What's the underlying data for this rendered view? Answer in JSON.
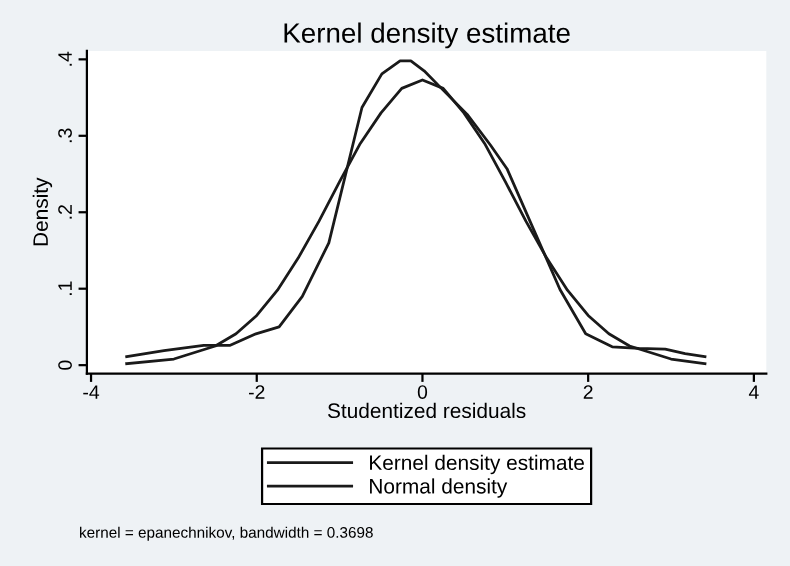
{
  "chart_data": {
    "type": "line",
    "title": "Kernel density estimate",
    "xlabel": "Studentized residuals",
    "ylabel": "Density",
    "series": [
      {
        "name": "Kernel density estimate",
        "color": "#1a1a1a",
        "x": [
          -3.57,
          -3.12,
          -2.64,
          -2.32,
          -2.01,
          -1.73,
          -1.45,
          -1.13,
          -0.73,
          -0.49,
          -0.27,
          -0.14,
          0.02,
          0.22,
          0.54,
          0.82,
          1.02,
          1.34,
          1.66,
          1.97,
          2.29,
          2.61,
          2.93,
          3.17,
          3.41
        ],
        "values": [
          0.011,
          0.019,
          0.026,
          0.026,
          0.041,
          0.05,
          0.09,
          0.16,
          0.337,
          0.381,
          0.398,
          0.398,
          0.385,
          0.363,
          0.328,
          0.288,
          0.257,
          0.178,
          0.099,
          0.041,
          0.024,
          0.022,
          0.021,
          0.015,
          0.011
        ]
      },
      {
        "name": "Normal density",
        "color": "#1a1a1a",
        "x": [
          -3.57,
          -3,
          -2.5,
          -2.25,
          -2,
          -1.75,
          -1.5,
          -1.25,
          -1,
          -0.75,
          -0.5,
          -0.25,
          0,
          0.25,
          0.5,
          0.75,
          1,
          1.25,
          1.5,
          1.75,
          2,
          2.25,
          2.5,
          3,
          3.41
        ],
        "values": [
          0.002,
          0.008,
          0.025,
          0.041,
          0.065,
          0.098,
          0.14,
          0.188,
          0.24,
          0.29,
          0.33,
          0.362,
          0.373,
          0.362,
          0.33,
          0.29,
          0.24,
          0.188,
          0.14,
          0.098,
          0.065,
          0.041,
          0.025,
          0.008,
          0.002
        ]
      }
    ],
    "xlim": [
      -4.05,
      4.15
    ],
    "xticks": [
      -4,
      -2,
      0,
      2,
      4
    ],
    "ylim": [
      -0.011,
      0.411
    ],
    "yticks": [
      0,
      {
        "value": 0.1,
        "label": ".1"
      },
      {
        "value": 0.2,
        "label": ".2"
      },
      {
        "value": 0.3,
        "label": ".3"
      },
      {
        "value": 0.4,
        "label": ".4"
      }
    ],
    "grid": false,
    "legend": "bottom",
    "marker": "none",
    "line_style": "solid",
    "annotations": [
      "kernel = epanechnikov, bandwidth = 0.3698"
    ]
  }
}
